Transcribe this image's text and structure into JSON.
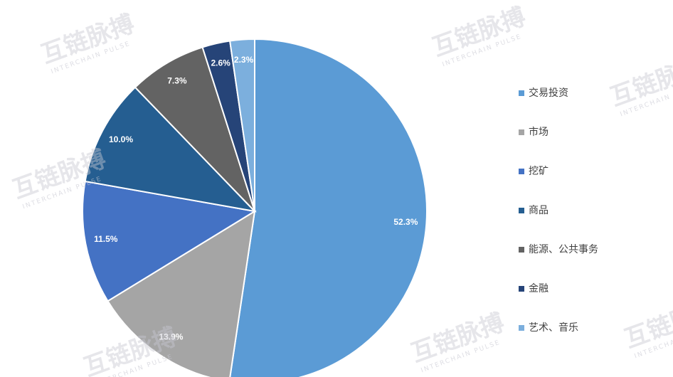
{
  "chart_data": {
    "type": "pie",
    "categories": [
      "交易投资",
      "市场",
      "挖矿",
      "商品",
      "能源、公共事务",
      "金融",
      "艺术、音乐"
    ],
    "values": [
      52.3,
      13.9,
      11.5,
      10.0,
      7.3,
      2.6,
      2.3
    ],
    "value_labels": [
      "52.3%",
      "13.9%",
      "11.5%",
      "10.0%",
      "7.3%",
      "2.6%",
      "2.3%"
    ],
    "colors": [
      "#5b9bd5",
      "#a5a5a5",
      "#4472c4",
      "#255e91",
      "#636363",
      "#264478",
      "#7cafdd"
    ],
    "legend": "right"
  },
  "watermark": {
    "text": "互链脉搏",
    "subtext": "INTERCHAIN PULSE"
  }
}
